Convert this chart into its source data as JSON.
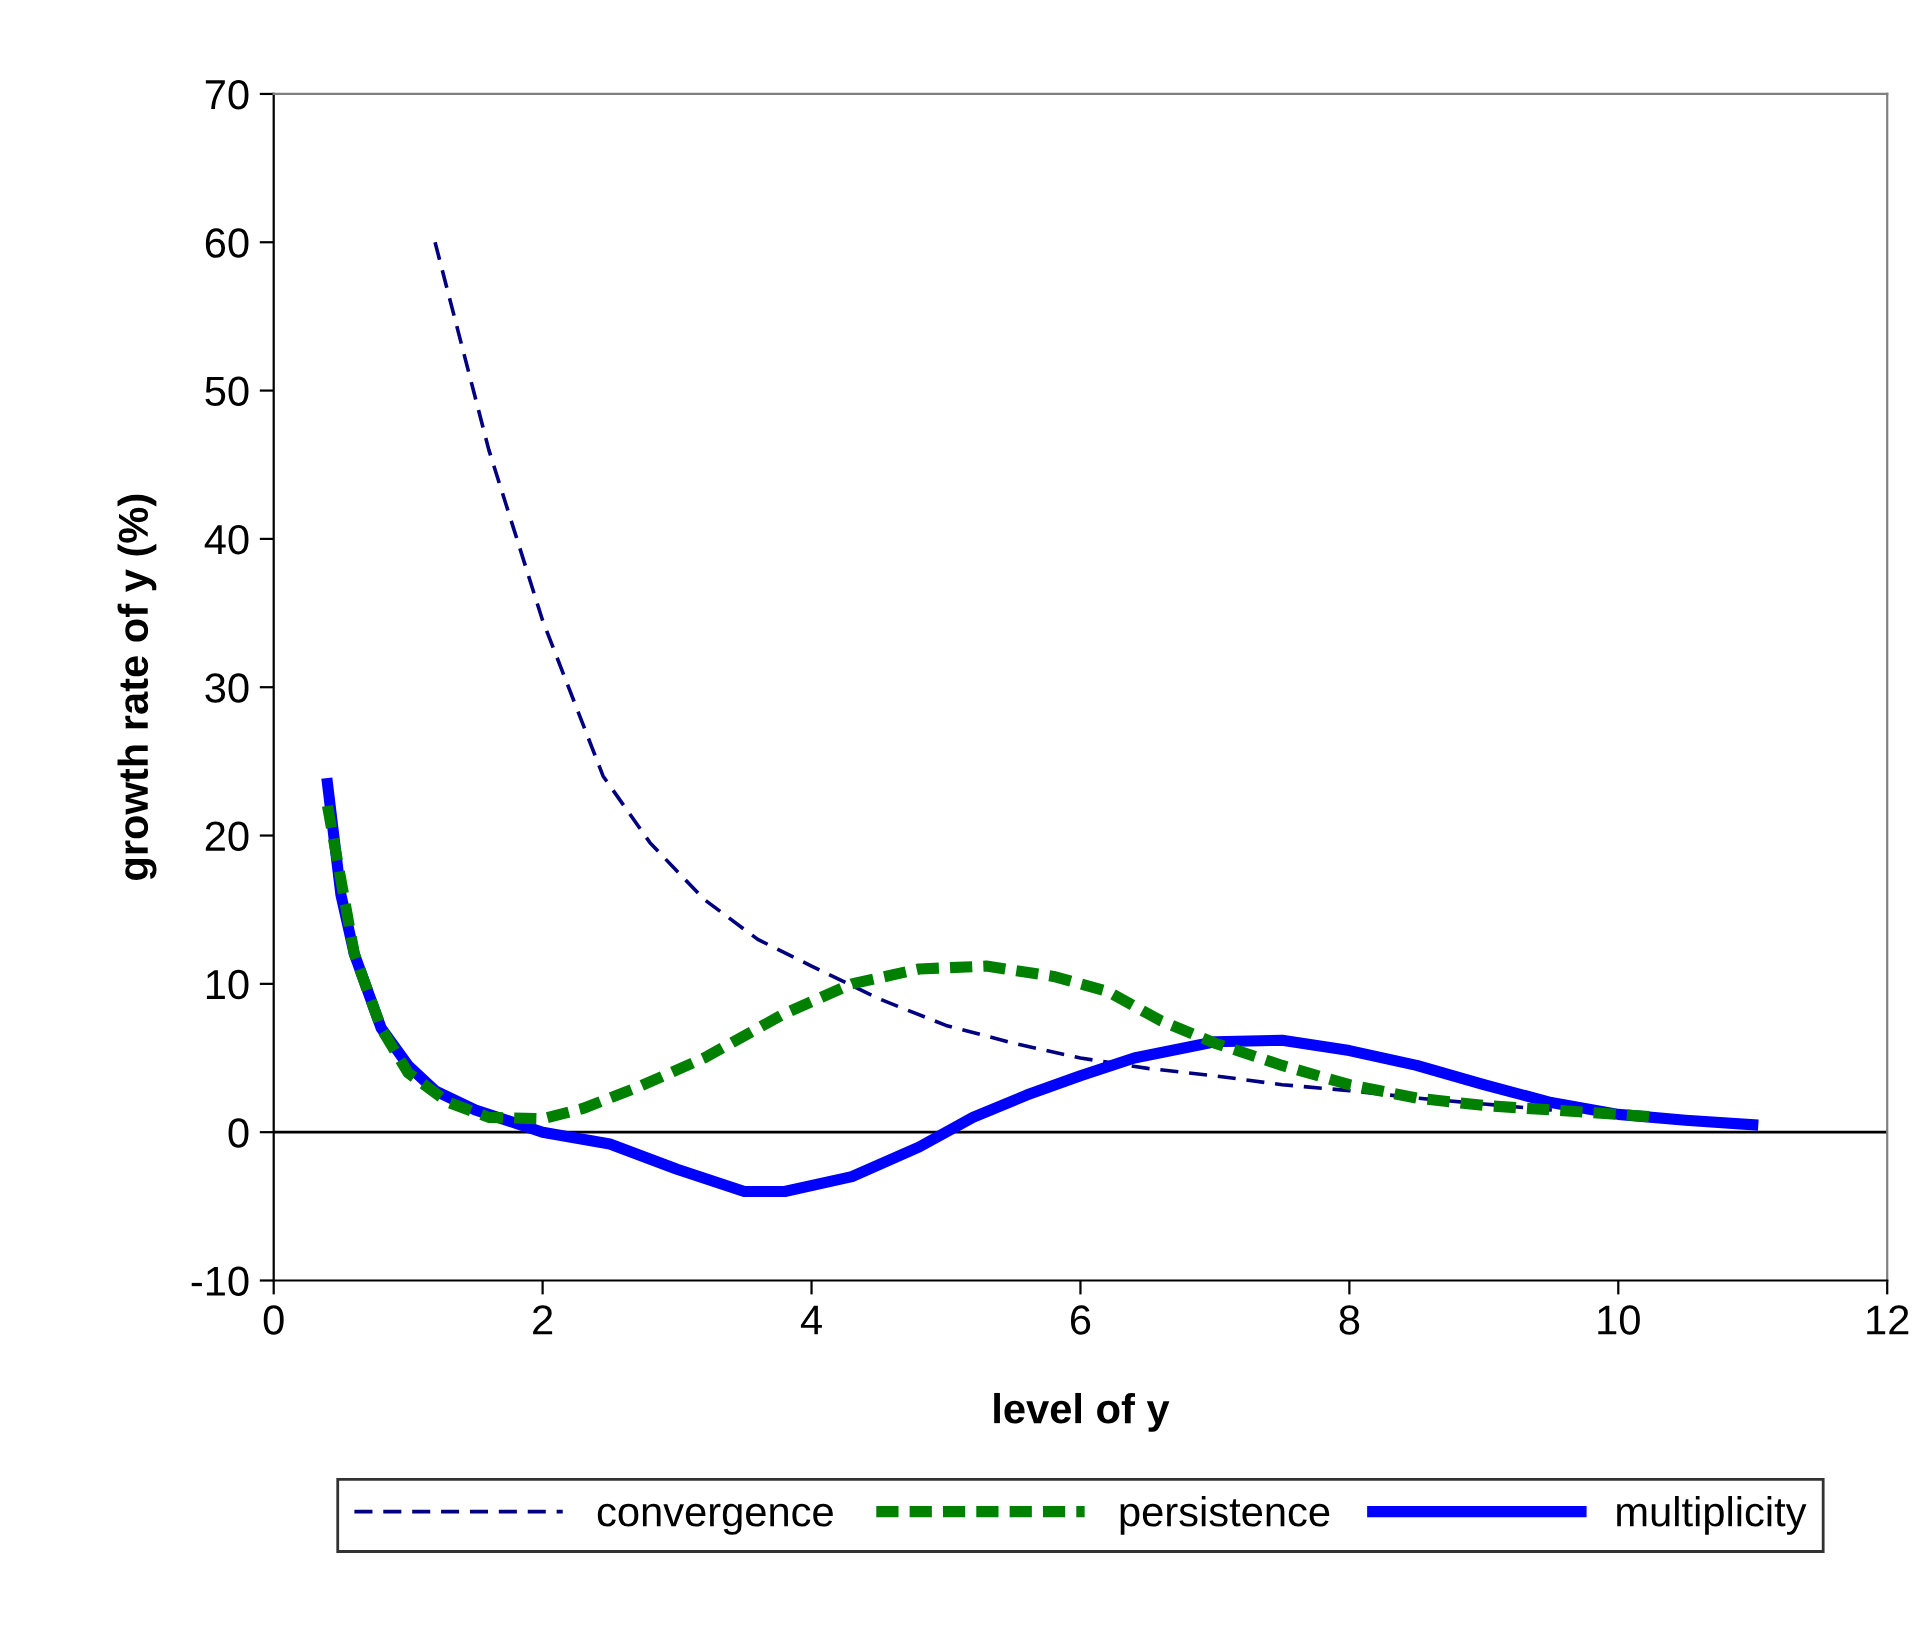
{
  "chart_data": {
    "type": "line",
    "xlabel": "level of y",
    "ylabel": "growth rate of y (%)",
    "xlim": [
      0,
      12
    ],
    "xticks": [
      0,
      2,
      4,
      6,
      8,
      10,
      12
    ],
    "ylim": [
      -10,
      70
    ],
    "yticks": [
      -10,
      0,
      10,
      20,
      30,
      40,
      50,
      60,
      70
    ],
    "grid": false,
    "legend": "bottom",
    "marker": "none",
    "ref_lines": [
      {
        "axis": "y",
        "value": 0,
        "color": "#000000",
        "line_style": "solid"
      }
    ],
    "series": [
      {
        "name": "convergence",
        "color": "#000080",
        "line_style": "dashed",
        "x": [
          1.2,
          1.4,
          1.6,
          2.0,
          2.45,
          2.8,
          3.2,
          3.6,
          4.0,
          4.5,
          5.0,
          5.5,
          6.0,
          6.5,
          7.0,
          7.5,
          8.0,
          8.5,
          9.0,
          9.5,
          10.0,
          10.5,
          11.0
        ],
        "values": [
          60,
          53,
          46,
          34.5,
          24,
          19.5,
          15.7,
          13,
          11.2,
          9,
          7.2,
          6,
          5,
          4.3,
          3.8,
          3.2,
          2.8,
          2.3,
          1.9,
          1.5,
          1.2,
          0.8,
          0.5
        ]
      },
      {
        "name": "persistence",
        "color": "#008000",
        "line_style": "dotted",
        "x": [
          0.4,
          0.6,
          0.8,
          1.0,
          1.3,
          1.6,
          2.0,
          2.3,
          2.7,
          3.2,
          3.8,
          4.3,
          4.8,
          5.3,
          5.8,
          6.2,
          6.6,
          7.0,
          7.5,
          8.0,
          8.5,
          9.0,
          9.5,
          10.0,
          10.3
        ],
        "values": [
          22,
          12,
          7,
          4,
          2,
          1,
          0.9,
          1.6,
          3,
          5,
          8,
          10,
          11,
          11.2,
          10.5,
          9.5,
          7.5,
          6,
          4.5,
          3.2,
          2.3,
          1.8,
          1.5,
          1.2,
          1.0
        ]
      },
      {
        "name": "multiplicity",
        "color": "#0000ff",
        "line_style": "solid",
        "x": [
          0.4,
          0.5,
          0.6,
          0.8,
          1.0,
          1.2,
          1.5,
          1.8,
          2.0,
          2.5,
          3.0,
          3.5,
          3.8,
          4.3,
          4.8,
          5.2,
          5.6,
          6.0,
          6.4,
          7.0,
          7.5,
          8.0,
          8.5,
          9.0,
          9.5,
          10.0,
          10.5,
          11.0
        ],
        "values": [
          23.5,
          16,
          12,
          7,
          4.5,
          2.8,
          1.5,
          0.6,
          0,
          -0.8,
          -2.5,
          -4,
          -4,
          -3,
          -1,
          1,
          2.5,
          3.8,
          5,
          6.1,
          6.2,
          5.5,
          4.5,
          3.2,
          2,
          1.2,
          0.8,
          0.5
        ]
      }
    ]
  }
}
